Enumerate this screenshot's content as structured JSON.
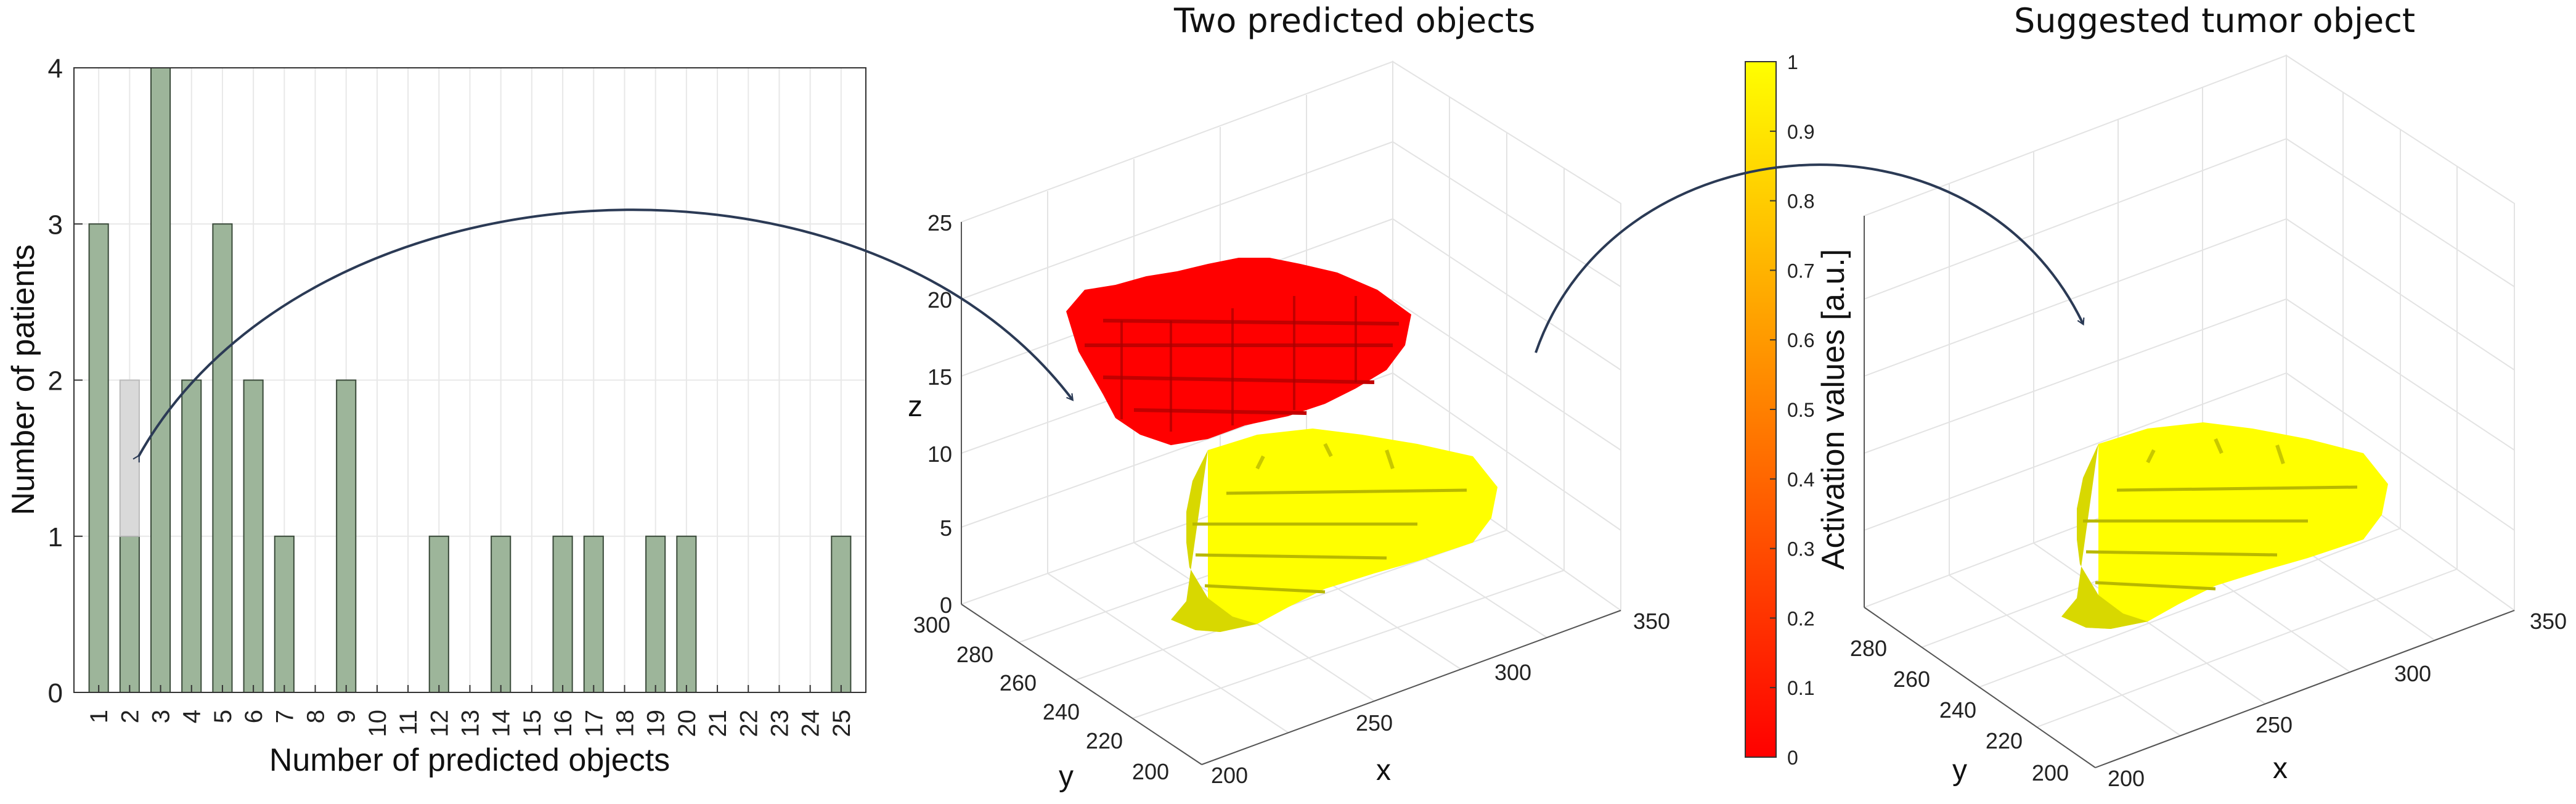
{
  "chart_data": [
    {
      "type": "bar",
      "xlabel": "Number of predicted objects",
      "ylabel": "Number of patients",
      "ylim": [
        0,
        4
      ],
      "yticks": [
        "0",
        "1",
        "2",
        "3",
        "4"
      ],
      "grid": "on",
      "categories": [
        "1",
        "2",
        "3",
        "4",
        "5",
        "6",
        "7",
        "8",
        "9",
        "10",
        "11",
        "12",
        "13",
        "14",
        "15",
        "16",
        "17",
        "18",
        "19",
        "20",
        "21",
        "22",
        "23",
        "24",
        "25"
      ],
      "values": [
        3,
        1,
        4,
        2,
        3,
        2,
        1,
        0,
        2,
        0,
        0,
        1,
        0,
        1,
        0,
        1,
        1,
        0,
        1,
        1,
        0,
        0,
        0,
        0,
        1
      ],
      "bar_color": "#9db59a",
      "highlight": {
        "category": "2",
        "range": [
          1,
          2
        ],
        "color": "#d9d9d9"
      }
    },
    {
      "type": "3d-surface",
      "title": "Two predicted objects",
      "xlabel": "x",
      "ylabel": "y",
      "zlabel": "z",
      "xticks": [
        "200",
        "250",
        "300",
        "350"
      ],
      "yticks": [
        "200",
        "220",
        "240",
        "260",
        "280",
        "300"
      ],
      "zticks": [
        "0",
        "5",
        "10",
        "15",
        "20",
        "25"
      ],
      "objects": [
        {
          "color": "#ff0000",
          "activation": 0
        },
        {
          "color": "#ffff00",
          "activation": 1
        }
      ]
    },
    {
      "type": "colorbar",
      "label": "Activation values [a.u.]",
      "range": [
        0,
        1
      ],
      "ticks": [
        "0",
        "0.1",
        "0.2",
        "0.3",
        "0.4",
        "0.5",
        "0.6",
        "0.7",
        "0.8",
        "0.9",
        "1"
      ],
      "colormap": [
        "#ff0000",
        "#ff8000",
        "#ffff00"
      ]
    },
    {
      "type": "3d-surface",
      "title": "Suggested tumor object",
      "xlabel": "x",
      "ylabel": "y",
      "xticks": [
        "200",
        "250",
        "300",
        "350"
      ],
      "yticks": [
        "200",
        "220",
        "240",
        "260",
        "280"
      ],
      "objects": [
        {
          "color": "#ffff00",
          "activation": 1
        }
      ]
    }
  ],
  "colors": {
    "arrow": "#2b3a55",
    "grid": "#e6e6e6",
    "axis": "#333333",
    "red_object": "#ff0000",
    "yellow_object": "#ffff00"
  }
}
